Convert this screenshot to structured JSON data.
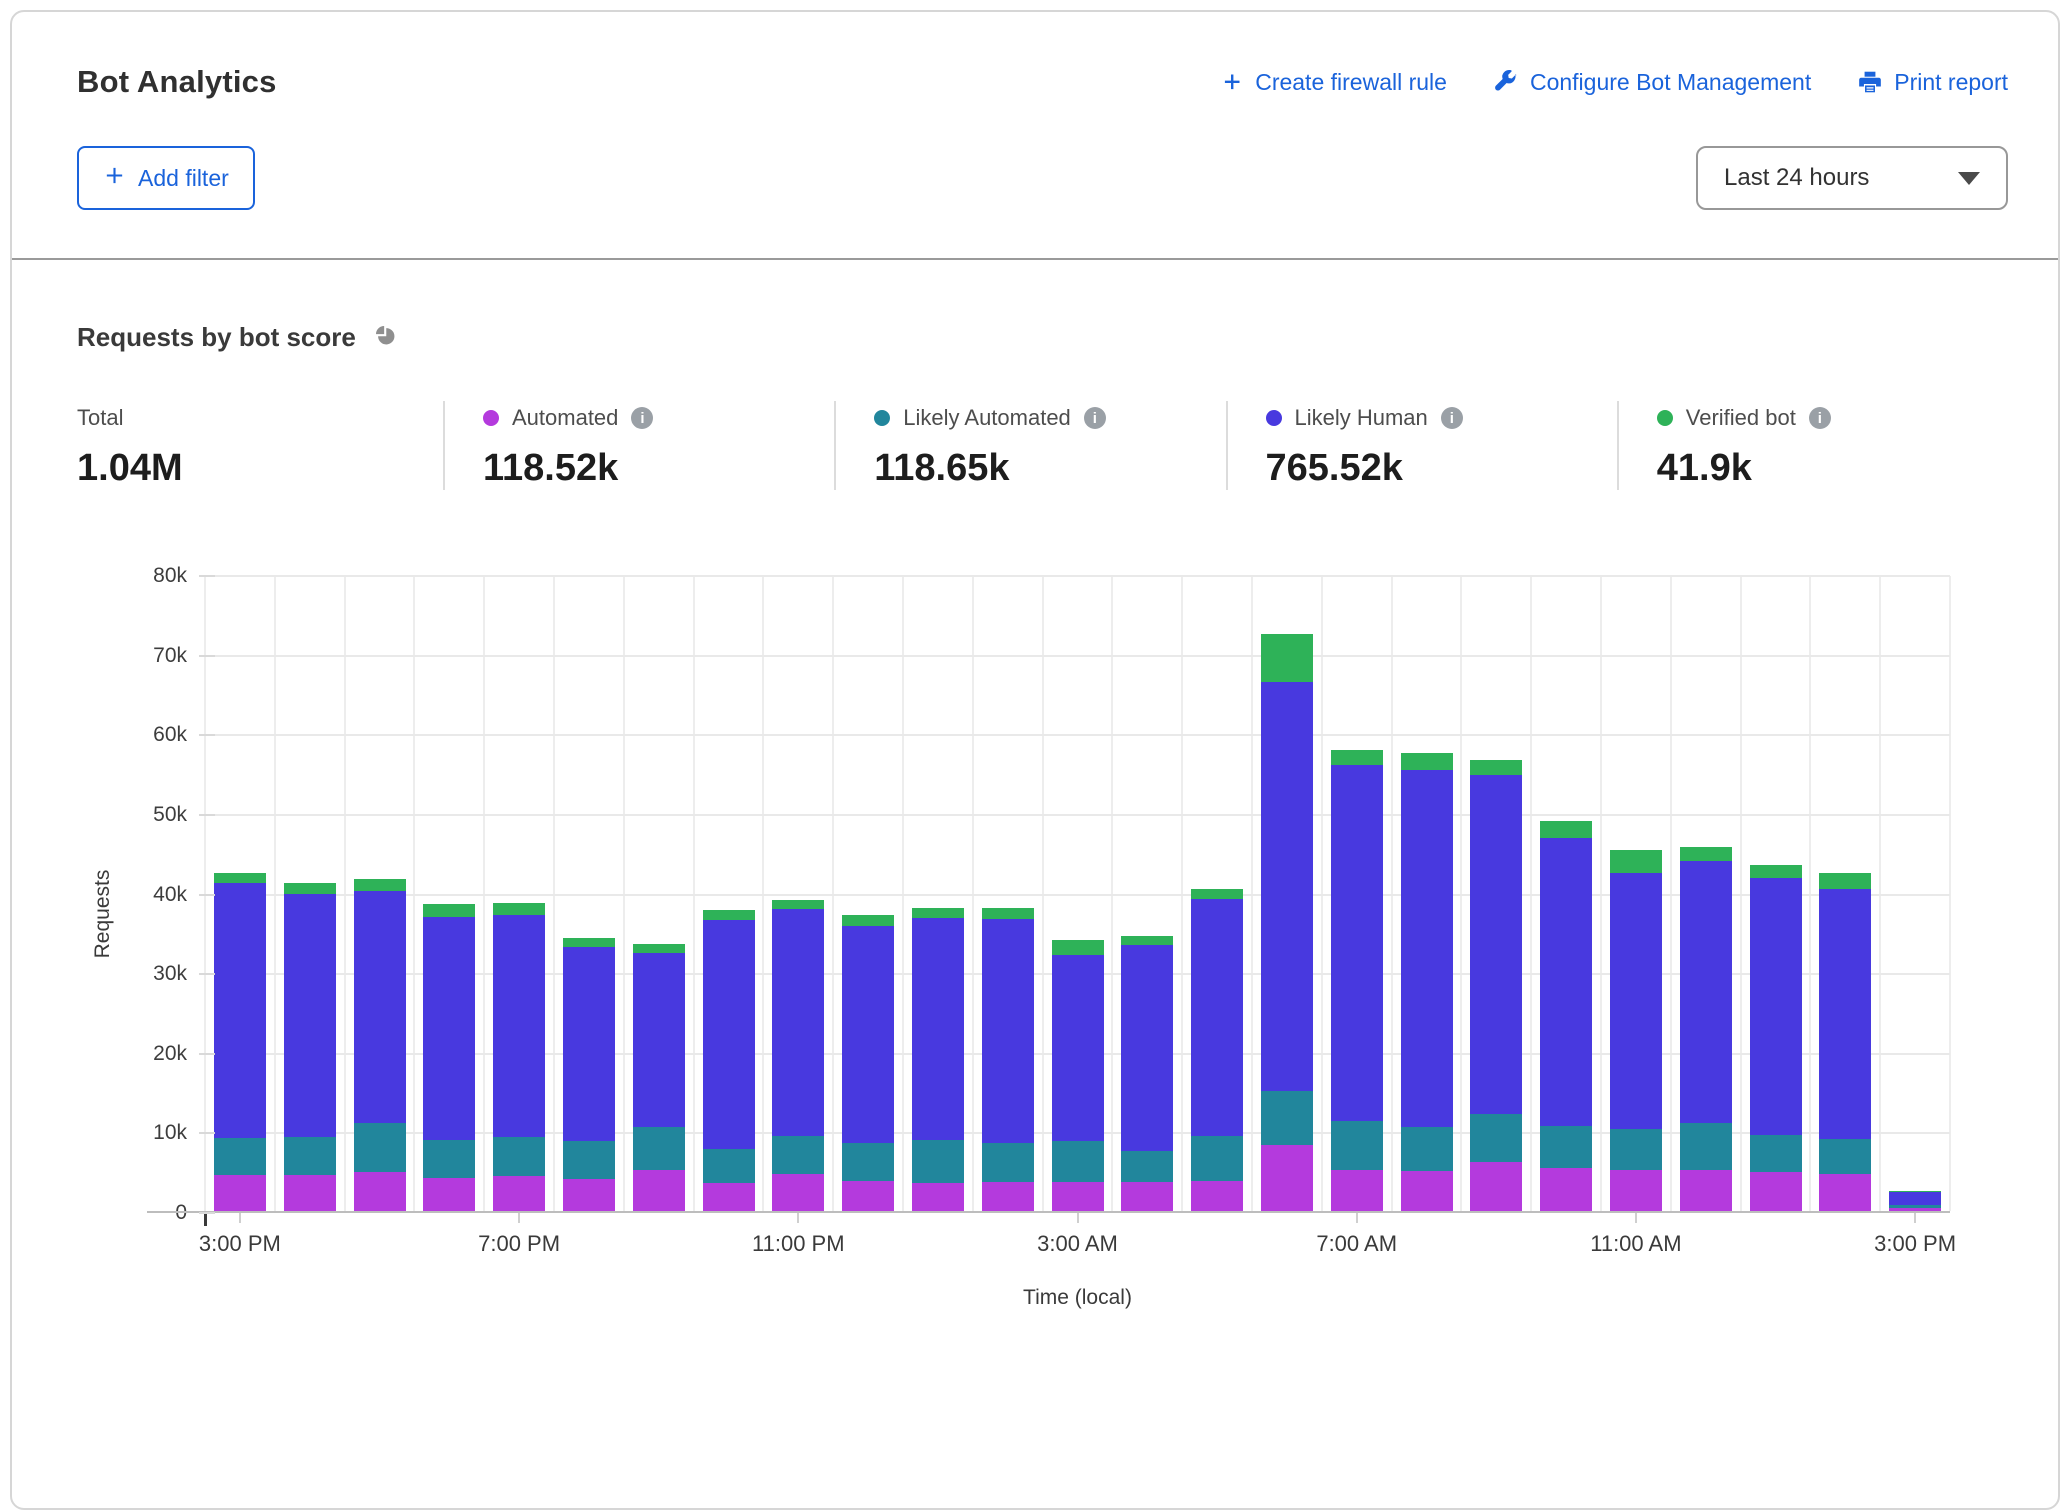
{
  "header": {
    "title": "Bot Analytics",
    "actions": [
      {
        "label": "Create firewall rule",
        "icon": "plus-icon"
      },
      {
        "label": "Configure Bot Management",
        "icon": "wrench-icon"
      },
      {
        "label": "Print report",
        "icon": "printer-icon"
      }
    ],
    "add_filter_label": "Add filter",
    "time_range_value": "Last 24 hours",
    "link_color": "#1a63db"
  },
  "section": {
    "title": "Requests by bot score"
  },
  "stats": {
    "total": {
      "label": "Total",
      "value": "1.04M"
    },
    "series": [
      {
        "label": "Automated",
        "value": "118.52k",
        "color": "#b43add"
      },
      {
        "label": "Likely Automated",
        "value": "118.65k",
        "color": "#21869c"
      },
      {
        "label": "Likely Human",
        "value": "765.52k",
        "color": "#4839df"
      },
      {
        "label": "Verified bot",
        "value": "41.9k",
        "color": "#2eb258"
      }
    ]
  },
  "chart_data": {
    "type": "bar",
    "stacked": true,
    "title": "Requests by bot score",
    "xlabel": "Time (local)",
    "ylabel": "Requests",
    "ylim": [
      0,
      80000
    ],
    "grid": true,
    "legend_position": "top",
    "ytick_labels": [
      "0",
      "10k",
      "20k",
      "30k",
      "40k",
      "50k",
      "60k",
      "70k",
      "80k"
    ],
    "xtick_labels": [
      "3:00 PM",
      "7:00 PM",
      "11:00 PM",
      "3:00 AM",
      "7:00 AM",
      "11:00 AM",
      "3:00 PM"
    ],
    "xtick_positions": [
      0,
      4,
      8,
      12,
      16,
      20,
      24
    ],
    "categories": [
      "3:00 PM",
      "4:00 PM",
      "5:00 PM",
      "6:00 PM",
      "7:00 PM",
      "8:00 PM",
      "9:00 PM",
      "10:00 PM",
      "11:00 PM",
      "12:00 AM",
      "1:00 AM",
      "2:00 AM",
      "3:00 AM",
      "4:00 AM",
      "5:00 AM",
      "6:00 AM",
      "7:00 AM",
      "8:00 AM",
      "9:00 AM",
      "10:00 AM",
      "11:00 AM",
      "12:00 PM",
      "1:00 PM",
      "2:00 PM",
      "3:00 PM"
    ],
    "series": [
      {
        "name": "Automated",
        "color": "#b43add",
        "values": [
          4500,
          4500,
          4900,
          4200,
          4400,
          4000,
          5200,
          3500,
          4600,
          3800,
          3500,
          3700,
          3600,
          3600,
          3800,
          8300,
          5200,
          5000,
          6100,
          5400,
          5200,
          5100,
          4900,
          4600,
          350
        ]
      },
      {
        "name": "Likely Automated",
        "color": "#21869c",
        "values": [
          4700,
          4800,
          6100,
          4700,
          4900,
          4800,
          5300,
          4300,
          4800,
          4700,
          5400,
          4800,
          5200,
          3900,
          5600,
          6800,
          6100,
          5600,
          6100,
          5300,
          5100,
          5900,
          4600,
          4400,
          350
        ]
      },
      {
        "name": "Likely Human",
        "color": "#4839df",
        "values": [
          32000,
          30500,
          29200,
          28000,
          27900,
          24300,
          21900,
          28700,
          28500,
          27300,
          27900,
          28200,
          23300,
          25900,
          29800,
          51400,
          44700,
          44800,
          42500,
          36200,
          32200,
          32900,
          32300,
          31500,
          1700
        ]
      },
      {
        "name": "Verified bot",
        "color": "#2eb258",
        "values": [
          1300,
          1400,
          1500,
          1600,
          1500,
          1200,
          1100,
          1300,
          1200,
          1400,
          1200,
          1300,
          1900,
          1200,
          1300,
          6000,
          1900,
          2100,
          1900,
          2100,
          2900,
          1800,
          1700,
          1900,
          100
        ]
      }
    ]
  }
}
